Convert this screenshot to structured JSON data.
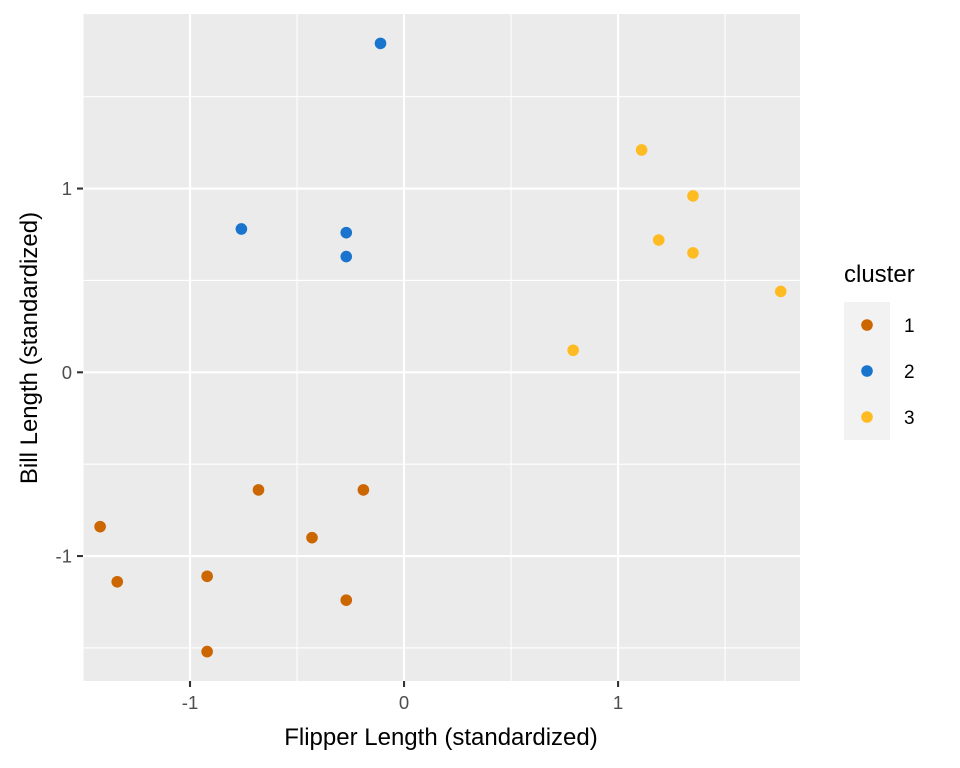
{
  "chart_data": {
    "type": "scatter",
    "xlabel": "Flipper Length (standardized)",
    "ylabel": "Bill Length (standardized)",
    "xlim": [
      -1.5,
      1.85
    ],
    "ylim": [
      -1.68,
      1.95
    ],
    "x_ticks": [
      -1,
      0,
      1
    ],
    "x_tick_labels": [
      "-1",
      "0",
      "1"
    ],
    "y_ticks": [
      -1,
      0,
      1
    ],
    "y_tick_labels": [
      "-1",
      "0",
      "1"
    ],
    "x_minor_ticks": [
      -1.5,
      -0.5,
      0.5,
      1.5
    ],
    "y_minor_ticks": [
      -1.5,
      -0.5,
      0.5,
      1.5
    ],
    "grid": true,
    "legend": {
      "title": "cluster",
      "position": "right",
      "entries": [
        "1",
        "2",
        "3"
      ]
    },
    "series": [
      {
        "name": "1",
        "color": "#CC6600",
        "points": [
          {
            "x": -1.42,
            "y": -0.84
          },
          {
            "x": -1.34,
            "y": -1.14
          },
          {
            "x": -0.92,
            "y": -1.11
          },
          {
            "x": -0.92,
            "y": -1.52
          },
          {
            "x": -0.68,
            "y": -0.64
          },
          {
            "x": -0.43,
            "y": -0.9
          },
          {
            "x": -0.27,
            "y": -1.24
          },
          {
            "x": -0.19,
            "y": -0.64
          }
        ]
      },
      {
        "name": "2",
        "color": "#1874CD",
        "points": [
          {
            "x": -0.76,
            "y": 0.78
          },
          {
            "x": -0.27,
            "y": 0.76
          },
          {
            "x": -0.27,
            "y": 0.63
          },
          {
            "x": -0.11,
            "y": 1.79
          }
        ]
      },
      {
        "name": "3",
        "color": "#FFBB22",
        "points": [
          {
            "x": 0.79,
            "y": 0.12
          },
          {
            "x": 1.11,
            "y": 1.21
          },
          {
            "x": 1.19,
            "y": 0.72
          },
          {
            "x": 1.35,
            "y": 0.96
          },
          {
            "x": 1.35,
            "y": 0.65
          },
          {
            "x": 1.76,
            "y": 0.44
          }
        ]
      }
    ]
  }
}
